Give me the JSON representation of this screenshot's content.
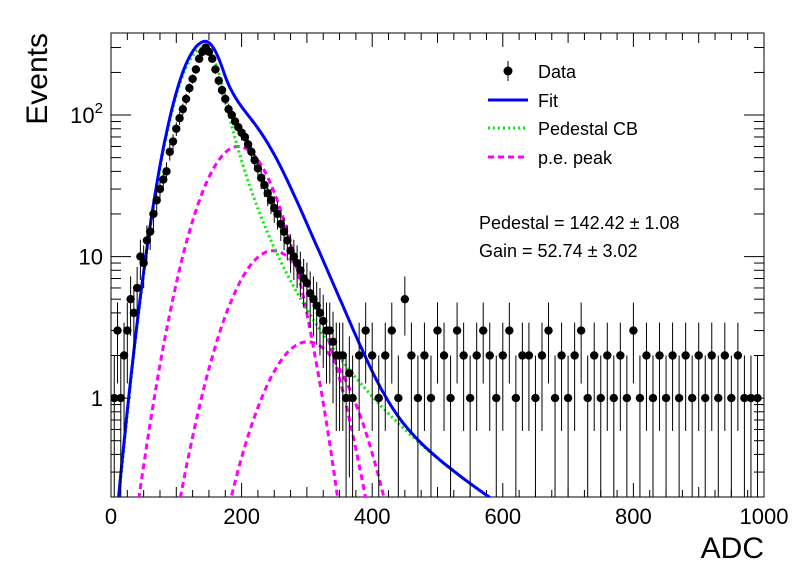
{
  "chart_data": {
    "type": "scatter",
    "title": "",
    "xlabel": "ADC",
    "ylabel": "Events",
    "xlim": [
      0,
      1000
    ],
    "ylim": [
      0.2,
      380
    ],
    "yscale": "log",
    "x_ticks": [
      0,
      200,
      400,
      600,
      800,
      1000
    ],
    "y_ticks": [
      {
        "value": 1,
        "label": "1"
      },
      {
        "value": 10,
        "label": "10"
      },
      {
        "value": 100,
        "label": "10",
        "exp": "2"
      }
    ],
    "grid": false,
    "legend_position": "top-right",
    "legend": [
      {
        "label": "Data",
        "style": "marker"
      },
      {
        "label": "Fit",
        "style": "solid",
        "color": "#0000ff"
      },
      {
        "label": "Pedestal CB",
        "style": "dotted",
        "color": "#00ee00"
      },
      {
        "label": "p.e. peak",
        "style": "dashed",
        "color": "#ff00ff"
      }
    ],
    "annotations": [
      {
        "text": "Pedestal = 142.42",
        "pm": "1.08"
      },
      {
        "text": "Gain = 52.74",
        "pm": "3.02"
      }
    ],
    "model": {
      "pedestal_mean": 142.42,
      "gain": 52.74,
      "pedestal_amplitude": 300,
      "pedestal_sigma_left": 34,
      "pedestal_sigma_right": 25,
      "tail_alpha": 1.2,
      "tail_n": 3.5,
      "pe_peaks": [
        {
          "mean": 195,
          "sigma": 45,
          "amplitude": 60
        },
        {
          "mean": 248,
          "sigma": 50,
          "amplitude": 11
        },
        {
          "mean": 301,
          "sigma": 52,
          "amplitude": 2.5
        }
      ]
    },
    "series": [
      {
        "name": "Data",
        "x": [
          5,
          10,
          15,
          20,
          25,
          30,
          35,
          40,
          45,
          50,
          55,
          60,
          65,
          70,
          75,
          80,
          85,
          90,
          95,
          100,
          105,
          110,
          115,
          120,
          125,
          130,
          135,
          140,
          145,
          150,
          155,
          160,
          165,
          170,
          175,
          180,
          185,
          190,
          195,
          200,
          205,
          210,
          215,
          220,
          225,
          230,
          235,
          240,
          245,
          250,
          255,
          260,
          265,
          270,
          275,
          280,
          285,
          290,
          295,
          300,
          305,
          310,
          315,
          320,
          325,
          330,
          335,
          340,
          345,
          350,
          355,
          360,
          365,
          370,
          380,
          390,
          400,
          410,
          420,
          430,
          440,
          450,
          460,
          470,
          480,
          490,
          500,
          510,
          520,
          530,
          540,
          550,
          560,
          570,
          580,
          590,
          600,
          610,
          620,
          630,
          640,
          650,
          660,
          670,
          680,
          690,
          700,
          710,
          720,
          730,
          740,
          750,
          760,
          770,
          780,
          790,
          800,
          810,
          820,
          830,
          840,
          850,
          860,
          870,
          880,
          890,
          900,
          910,
          920,
          930,
          940,
          950,
          960,
          970,
          980,
          990
        ],
        "y": [
          1,
          3,
          1,
          2,
          3,
          5,
          4,
          6,
          10,
          9,
          13,
          15,
          20,
          25,
          30,
          35,
          40,
          55,
          65,
          80,
          95,
          110,
          130,
          155,
          180,
          210,
          250,
          280,
          300,
          280,
          250,
          210,
          175,
          150,
          130,
          110,
          100,
          90,
          82,
          75,
          70,
          62,
          55,
          48,
          42,
          36,
          32,
          28,
          25,
          22,
          20,
          17,
          15,
          13,
          11,
          10,
          9,
          8,
          7,
          6.5,
          5.5,
          5,
          4.5,
          4,
          3.5,
          3,
          3,
          2.5,
          2,
          2,
          2,
          1,
          1.5,
          1,
          2,
          3,
          2,
          1,
          2,
          3,
          1,
          5,
          2,
          1,
          2,
          1,
          3,
          2,
          1,
          3,
          2,
          1,
          2,
          3,
          2,
          1,
          2,
          3,
          1,
          2,
          2,
          1,
          2,
          3,
          1,
          2,
          1,
          2,
          3,
          1,
          2,
          1,
          2,
          1,
          2,
          1,
          3,
          1,
          2,
          1,
          2,
          1,
          2,
          1,
          2,
          1,
          2,
          1,
          2,
          1,
          2,
          1,
          2,
          1,
          1,
          1
        ]
      }
    ]
  }
}
